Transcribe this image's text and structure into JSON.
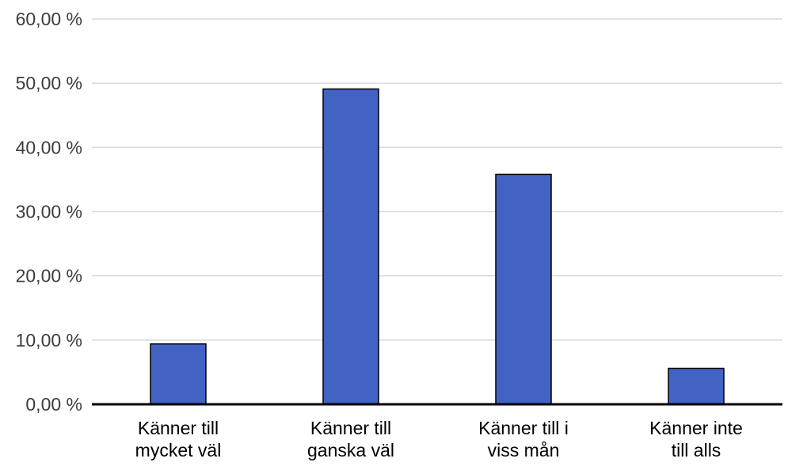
{
  "chart_data": {
    "type": "bar",
    "title": "",
    "xlabel": "",
    "ylabel": "",
    "categories": [
      [
        "Känner till",
        "mycket väl"
      ],
      [
        "Känner till",
        "ganska väl"
      ],
      [
        "Känner till i",
        "viss mån"
      ],
      [
        "Känner inte",
        "till alls"
      ]
    ],
    "values": [
      9.4,
      49.1,
      35.8,
      5.6
    ],
    "ylim": [
      0,
      60
    ],
    "yticks": [
      0,
      10,
      20,
      30,
      40,
      50,
      60
    ],
    "ytick_labels": [
      "0,00 %",
      "10,00 %",
      "20,00 %",
      "30,00 %",
      "40,00 %",
      "50,00 %",
      "60,00 %"
    ],
    "grid": true,
    "legend": "none",
    "colors": {
      "bar": "#4263c3",
      "bar_edge": "#000000",
      "grid": "#d9d9d9",
      "axis": "#000000"
    }
  }
}
